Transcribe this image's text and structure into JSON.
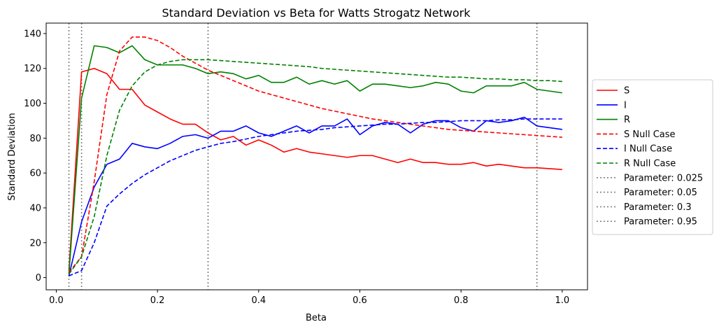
{
  "chart_data": {
    "type": "line",
    "title": "Standard Deviation vs Beta for Watts Strogatz Network",
    "xlabel": "Beta",
    "ylabel": "Standard Deviation",
    "xlim": [
      -0.02,
      1.05
    ],
    "ylim": [
      -7,
      146
    ],
    "xticks": [
      0.0,
      0.2,
      0.4,
      0.6,
      0.8,
      1.0
    ],
    "xtick_labels": [
      "0.0",
      "0.2",
      "0.4",
      "0.6",
      "0.8",
      "1.0"
    ],
    "yticks": [
      0,
      20,
      40,
      60,
      80,
      100,
      120,
      140
    ],
    "ytick_labels": [
      "0",
      "20",
      "40",
      "60",
      "80",
      "100",
      "120",
      "140"
    ],
    "grid": false,
    "legend_placement": "outside-right",
    "x": [
      0.025,
      0.05,
      0.075,
      0.1,
      0.125,
      0.15,
      0.175,
      0.2,
      0.225,
      0.25,
      0.275,
      0.3,
      0.325,
      0.35,
      0.375,
      0.4,
      0.425,
      0.45,
      0.475,
      0.5,
      0.525,
      0.55,
      0.575,
      0.6,
      0.625,
      0.65,
      0.675,
      0.7,
      0.725,
      0.75,
      0.775,
      0.8,
      0.825,
      0.85,
      0.875,
      0.9,
      0.925,
      0.95,
      0.975,
      1.0
    ],
    "series": [
      {
        "name": "S",
        "color": "#ff0000",
        "dash": "solid",
        "values": [
          4,
          118,
          120,
          117,
          108,
          108,
          99,
          95,
          91,
          88,
          88,
          83,
          79,
          81,
          76,
          79,
          76,
          72,
          74,
          72,
          71,
          70,
          69,
          70,
          70,
          68,
          66,
          68,
          66,
          66,
          65,
          65,
          66,
          64,
          65,
          64,
          63,
          63,
          62.5,
          62
        ]
      },
      {
        "name": "I",
        "color": "#0000ff",
        "dash": "solid",
        "values": [
          1,
          32,
          52,
          65,
          68,
          77,
          75,
          74,
          77,
          81,
          82,
          80,
          84,
          84,
          87,
          83,
          81,
          84,
          87,
          83,
          87,
          87,
          91,
          82,
          87,
          89,
          88,
          83,
          88,
          90,
          90,
          86,
          84,
          90,
          89,
          90,
          92,
          87,
          86,
          85
        ]
      },
      {
        "name": "R",
        "color": "#008000",
        "dash": "solid",
        "values": [
          2,
          103,
          133,
          132,
          129,
          133,
          125,
          122,
          122,
          122,
          120,
          117,
          118,
          117,
          114,
          116,
          112,
          112,
          115,
          111,
          113,
          111,
          113,
          107,
          111,
          111,
          110,
          109,
          110,
          112,
          111,
          107,
          106,
          110,
          110,
          110,
          112,
          108,
          107,
          106
        ]
      },
      {
        "name": "S Null Case",
        "color": "#ff0000",
        "dash": "dashed",
        "values": [
          3,
          12,
          55,
          105,
          130,
          138,
          138,
          136,
          132,
          127,
          123,
          119,
          116,
          113,
          110,
          107,
          105,
          103,
          101,
          99,
          97,
          95.5,
          94,
          92.5,
          91,
          90,
          89,
          88,
          87,
          86,
          85,
          84.5,
          84,
          83.5,
          83,
          82.5,
          82,
          81.5,
          81,
          80.5
        ]
      },
      {
        "name": "I Null Case",
        "color": "#0000ff",
        "dash": "dashed",
        "values": [
          1,
          4,
          20,
          41,
          48,
          54,
          59,
          63,
          67,
          70,
          73,
          75,
          77,
          78,
          79.5,
          81,
          82,
          83,
          84,
          84.5,
          85,
          86,
          86.5,
          87,
          87.5,
          88,
          88,
          88.5,
          89,
          89,
          89.5,
          90,
          90,
          90,
          90.5,
          90.5,
          91,
          91,
          91,
          91
        ]
      },
      {
        "name": "R Null Case",
        "color": "#008000",
        "dash": "dashed",
        "values": [
          2,
          12,
          35,
          70,
          96,
          110,
          118,
          122,
          124,
          125,
          125,
          125,
          124.5,
          124,
          123.5,
          123,
          122.5,
          122,
          121.5,
          121,
          120,
          119.5,
          119,
          118.5,
          118,
          117.5,
          117,
          116.5,
          116,
          115.5,
          115,
          115,
          114.5,
          114,
          114,
          113.5,
          113.5,
          113,
          113,
          112.5
        ]
      }
    ],
    "vlines": [
      {
        "name": "Parameter: 0.025",
        "x": 0.025,
        "color": "#808080",
        "dash": "dotted"
      },
      {
        "name": "Parameter: 0.05",
        "x": 0.05,
        "color": "#808080",
        "dash": "dotted"
      },
      {
        "name": "Parameter: 0.3",
        "x": 0.3,
        "color": "#808080",
        "dash": "dotted"
      },
      {
        "name": "Parameter: 0.95",
        "x": 0.95,
        "color": "#808080",
        "dash": "dotted"
      }
    ]
  }
}
